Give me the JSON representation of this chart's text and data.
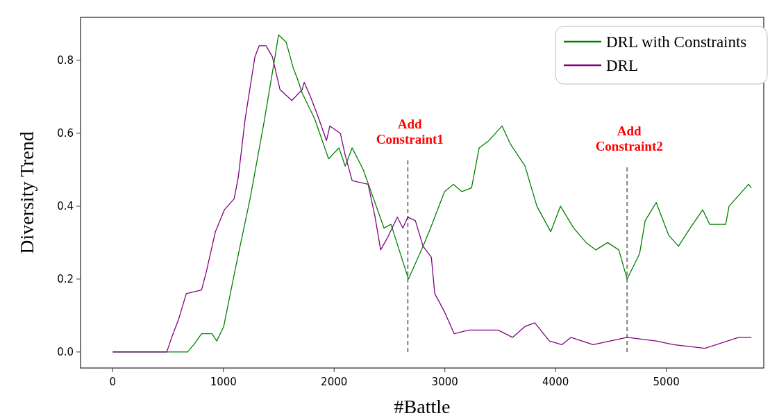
{
  "chart_data": {
    "type": "line",
    "xlabel": "#Battle",
    "ylabel": "Diversity Trend",
    "xlim": [
      -290,
      5880
    ],
    "ylim": [
      -0.044,
      0.918
    ],
    "xticks": [
      0,
      1000,
      2000,
      3000,
      4000,
      5000
    ],
    "yticks": [
      {
        "value": 0,
        "label": "0.0"
      },
      {
        "value": 0.2,
        "label": "0.2"
      },
      {
        "value": 0.4,
        "label": "0.4"
      },
      {
        "value": 0.6,
        "label": "0.6"
      },
      {
        "value": 0.8,
        "label": "0.8"
      }
    ],
    "legend": "top right",
    "grid": false,
    "line_style": "solid",
    "marker": "none",
    "series": [
      {
        "name": "DRL with Constraints",
        "color": "#008000",
        "x": [
          0,
          677,
          740,
          803,
          897,
          940,
          1003,
          1116,
          1241,
          1367,
          1461,
          1498,
          1567,
          1630,
          1668,
          1712,
          1824,
          1950,
          2044,
          2100,
          2163,
          2263,
          2451,
          2514,
          2671,
          2803,
          2871,
          2997,
          3078,
          3154,
          3241,
          3310,
          3398,
          3517,
          3593,
          3724,
          3831,
          3956,
          4044,
          4163,
          4276,
          4364,
          4470,
          4571,
          4646,
          4759,
          4809,
          4909,
          5022,
          5110,
          5216,
          5329,
          5392,
          5536,
          5567,
          5743,
          5768
        ],
        "values": [
          0,
          0,
          0.023,
          0.05,
          0.05,
          0.03,
          0.07,
          0.24,
          0.42,
          0.63,
          0.8,
          0.87,
          0.85,
          0.78,
          0.75,
          0.71,
          0.64,
          0.53,
          0.56,
          0.51,
          0.56,
          0.5,
          0.34,
          0.35,
          0.2,
          0.29,
          0.34,
          0.44,
          0.46,
          0.44,
          0.45,
          0.56,
          0.58,
          0.62,
          0.57,
          0.51,
          0.4,
          0.33,
          0.4,
          0.34,
          0.3,
          0.28,
          0.3,
          0.28,
          0.2,
          0.27,
          0.36,
          0.41,
          0.32,
          0.29,
          0.34,
          0.39,
          0.35,
          0.35,
          0.4,
          0.46,
          0.45
        ]
      },
      {
        "name": "DRL",
        "color": "#800080",
        "x": [
          0,
          489,
          533,
          596,
          665,
          803,
          846,
          928,
          1009,
          1097,
          1135,
          1197,
          1285,
          1323,
          1385,
          1442,
          1511,
          1618,
          1712,
          1730,
          1787,
          1850,
          1931,
          1962,
          2056,
          2100,
          2163,
          2307,
          2370,
          2420,
          2476,
          2571,
          2621,
          2665,
          2734,
          2803,
          2878,
          2909,
          2997,
          3085,
          3216,
          3480,
          3611,
          3724,
          3812,
          3944,
          4056,
          4138,
          4339,
          4646,
          4909,
          5066,
          5348,
          5655,
          5768
        ],
        "values": [
          0,
          0,
          0.04,
          0.09,
          0.16,
          0.17,
          0.22,
          0.33,
          0.39,
          0.42,
          0.48,
          0.64,
          0.81,
          0.84,
          0.84,
          0.81,
          0.72,
          0.69,
          0.72,
          0.74,
          0.7,
          0.65,
          0.58,
          0.62,
          0.6,
          0.54,
          0.47,
          0.46,
          0.37,
          0.28,
          0.31,
          0.37,
          0.34,
          0.37,
          0.36,
          0.29,
          0.26,
          0.16,
          0.11,
          0.05,
          0.06,
          0.06,
          0.04,
          0.07,
          0.08,
          0.03,
          0.02,
          0.04,
          0.02,
          0.04,
          0.03,
          0.02,
          0.01,
          0.04,
          0.04
        ]
      }
    ],
    "ref_lines": [
      {
        "axis": "x",
        "value": 2665,
        "label": "Add\nConstraint1",
        "color": "#808080",
        "line_style": "dashed"
      },
      {
        "axis": "x",
        "value": 4646,
        "label": "Add\nConstraint2",
        "color": "#808080",
        "line_style": "dashed"
      }
    ]
  }
}
